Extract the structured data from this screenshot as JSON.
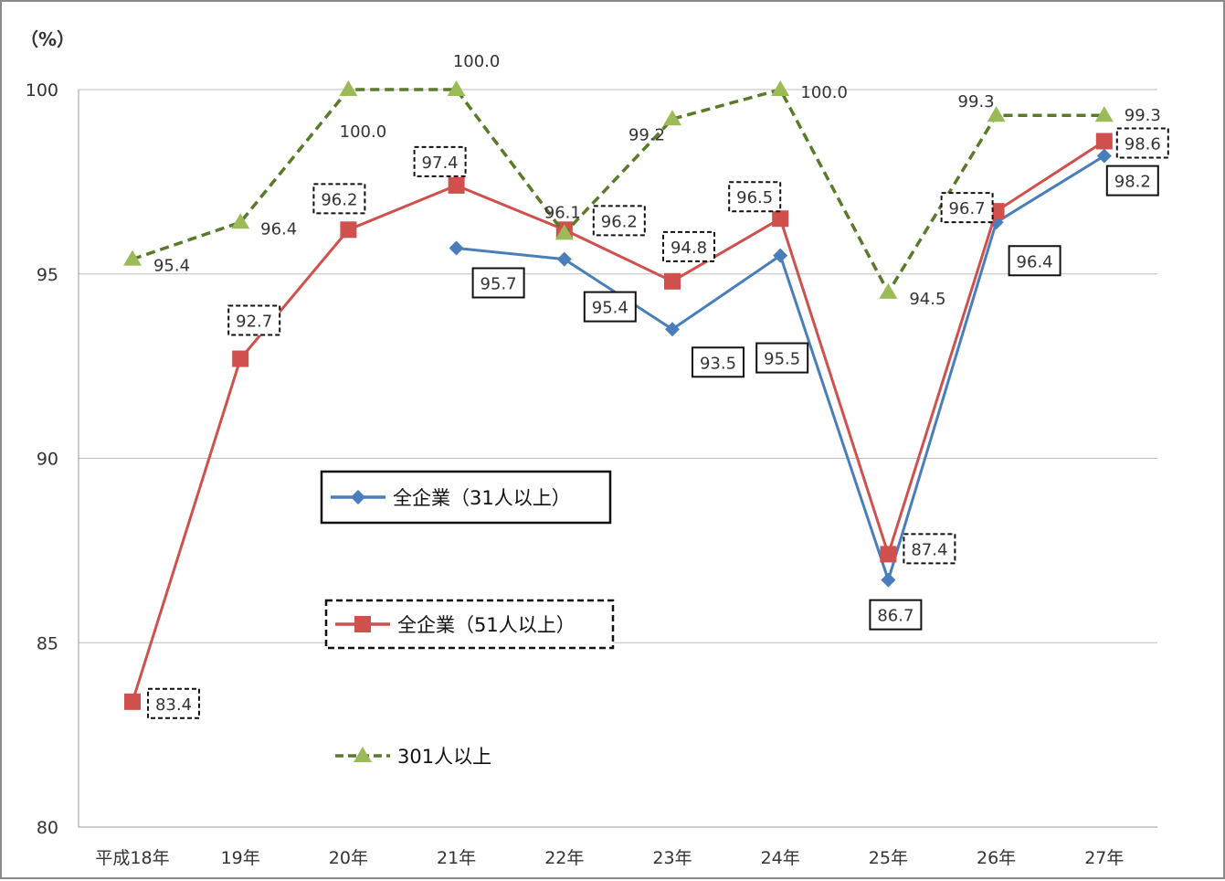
{
  "chart_data": {
    "type": "line",
    "unit_label": "（%）",
    "categories": [
      "平成18年",
      "19年",
      "20年",
      "21年",
      "22年",
      "23年",
      "24年",
      "25年",
      "26年",
      "27年"
    ],
    "ylim": [
      80,
      100
    ],
    "yticks": [
      "80",
      "85",
      "90",
      "95",
      "100"
    ],
    "grid": true,
    "legend_placement": "center-left",
    "series": [
      {
        "name": "全企業（31人以上）",
        "color": "#4a7ebb",
        "marker": "diamond",
        "dash": "solid",
        "label_box": "solid",
        "values": [
          null,
          null,
          null,
          95.7,
          95.4,
          93.5,
          95.5,
          86.7,
          96.4,
          98.2
        ],
        "labels": [
          "",
          "",
          "",
          "95.7",
          "95.4",
          "93.5",
          "95.5",
          "86.7",
          "96.4",
          "98.2"
        ]
      },
      {
        "name": "全企業（51人以上）",
        "color": "#d0504d",
        "marker": "square",
        "dash": "solid",
        "label_box": "dashed",
        "values": [
          83.4,
          92.7,
          96.2,
          97.4,
          96.2,
          94.8,
          96.5,
          87.4,
          96.7,
          98.6
        ],
        "labels": [
          "83.4",
          "92.7",
          "96.2",
          "97.4",
          "96.2",
          "94.8",
          "96.5",
          "87.4",
          "96.7",
          "98.6"
        ]
      },
      {
        "name": "301人以上",
        "color": "#5a7a2a",
        "marker_color": "#9bbb59",
        "marker": "triangle",
        "dash": "dashed",
        "label_box": "none",
        "values": [
          95.4,
          96.4,
          100.0,
          100.0,
          96.1,
          99.2,
          100.0,
          94.5,
          99.3,
          99.3
        ],
        "labels": [
          "95.4",
          "96.4",
          "100.0",
          "100.0",
          "96.1",
          "99.2",
          "100.0",
          "94.5",
          "99.3",
          "99.3"
        ]
      }
    ]
  }
}
